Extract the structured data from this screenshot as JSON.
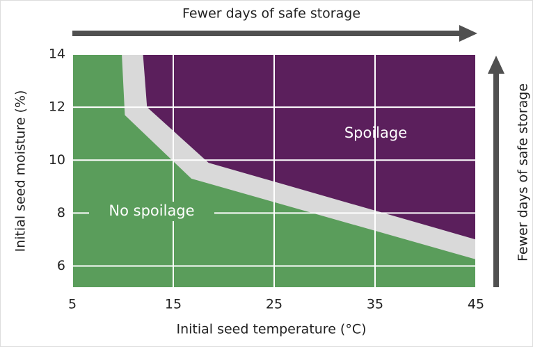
{
  "chart_data": {
    "type": "area",
    "xlabel": "Initial seed temperature (°C)",
    "ylabel": "Initial seed moisture (%)",
    "annotations": [
      "Fewer days of safe storage",
      "Fewer days of safe storage"
    ],
    "xlim": [
      5,
      45
    ],
    "xticks": [
      5,
      15,
      25,
      35,
      45
    ],
    "ylim": [
      5.2,
      14
    ],
    "yticks": [
      6,
      8,
      10,
      12,
      14
    ],
    "grid": true,
    "band_color": "#d9d9d9",
    "series": [
      {
        "name": "No spoilage",
        "color": "#5a9d5b",
        "fill": "below",
        "x": [
          9.9,
          10.2,
          16.8,
          45
        ],
        "values": [
          14,
          11.7,
          9.3,
          6.25
        ]
      },
      {
        "name": "Spoilage",
        "color": "#5b1f5c",
        "fill": "above",
        "x": [
          12,
          12.4,
          18.5,
          45
        ],
        "values": [
          14,
          12,
          9.9,
          7.0
        ]
      }
    ]
  }
}
